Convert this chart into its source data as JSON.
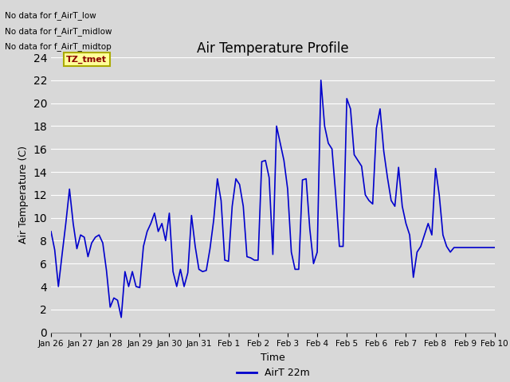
{
  "title": "Air Temperature Profile",
  "xlabel": "Time",
  "ylabel": "Air Temperature (C)",
  "legend_label": "AirT 22m",
  "line_color": "#0000CC",
  "background_color": "#D8D8D8",
  "plot_bg_color": "#D8D8D8",
  "ylim": [
    0,
    24
  ],
  "yticks": [
    0,
    2,
    4,
    6,
    8,
    10,
    12,
    14,
    16,
    18,
    20,
    22,
    24
  ],
  "xtick_labels": [
    "Jan 26",
    "Jan 27",
    "Jan 28",
    "Jan 29",
    "Jan 30",
    "Jan 31",
    "Feb 1",
    "Feb 2",
    "Feb 3",
    "Feb 4",
    "Feb 5",
    "Feb 6",
    "Feb 7",
    "Feb 8",
    "Feb 9",
    "Feb 10"
  ],
  "annotations": [
    "No data for f_AirT_low",
    "No data for f_AirT_midlow",
    "No data for f_AirT_midtop"
  ],
  "tz_label": "TZ_tmet",
  "time_values": [
    0,
    0.25,
    0.5,
    0.75,
    1.0,
    1.25,
    1.5,
    1.75,
    2.0,
    2.25,
    2.5,
    2.75,
    3.0,
    3.25,
    3.5,
    3.75,
    4.0,
    4.25,
    4.5,
    4.75,
    5.0,
    5.25,
    5.5,
    5.75,
    6.0,
    6.25,
    6.5,
    6.75,
    7.0,
    7.25,
    7.5,
    7.75,
    8.0,
    8.25,
    8.5,
    8.75,
    9.0,
    9.25,
    9.5,
    9.75,
    10.0,
    10.25,
    10.5,
    10.75,
    11.0,
    11.25,
    11.5,
    11.75,
    12.0,
    12.25,
    12.5,
    12.75,
    13.0,
    13.25,
    13.5,
    13.75,
    14.0,
    14.25,
    14.5,
    14.75,
    15.0,
    15.25,
    15.5,
    15.75,
    16.0,
    16.25,
    16.5,
    16.75,
    17.0,
    17.25,
    17.5,
    17.75,
    18.0,
    18.25,
    18.5,
    18.75,
    19.0,
    19.25,
    19.5,
    19.75,
    20.0,
    20.25,
    20.5,
    20.75,
    21.0,
    21.25,
    21.5,
    21.75,
    22.0,
    22.25,
    22.5,
    22.75,
    23.0,
    23.25,
    23.5,
    23.75,
    24.0,
    24.25,
    24.5,
    24.75,
    25.0,
    25.25,
    25.5,
    25.75,
    26.0,
    26.25,
    26.5,
    26.75,
    27.0,
    27.25,
    27.5,
    27.75,
    28.0,
    28.25,
    28.5,
    28.75,
    29.0,
    29.25,
    29.5,
    29.75,
    30.0
  ],
  "temp_values": [
    8.8,
    7.2,
    4.0,
    6.8,
    9.5,
    12.5,
    9.5,
    7.3,
    8.5,
    8.3,
    6.6,
    7.8,
    8.3,
    8.5,
    7.8,
    5.4,
    2.2,
    3.0,
    2.8,
    1.3,
    5.3,
    4.0,
    5.3,
    4.0,
    3.9,
    7.5,
    8.8,
    9.5,
    10.4,
    8.8,
    9.5,
    8.0,
    10.4,
    5.3,
    4.0,
    5.5,
    4.0,
    5.2,
    10.2,
    7.5,
    5.5,
    5.3,
    5.4,
    7.3,
    9.8,
    13.4,
    11.5,
    6.3,
    6.2,
    11.0,
    13.4,
    12.9,
    11.0,
    6.6,
    6.5,
    6.3,
    6.3,
    14.9,
    15.0,
    13.5,
    6.8,
    18.0,
    16.5,
    15.0,
    12.5,
    7.0,
    5.5,
    5.5,
    13.3,
    13.4,
    9.0,
    6.0,
    7.0,
    22.0,
    18.0,
    16.5,
    16.0,
    12.0,
    7.5,
    7.5,
    20.4,
    19.5,
    15.5,
    15.0,
    14.5,
    12.0,
    11.5,
    11.2,
    17.8,
    19.5,
    15.8,
    13.5,
    11.5,
    11.0,
    14.4,
    11.0,
    9.5,
    8.5,
    4.8,
    7.0,
    7.5,
    8.5,
    9.5,
    8.5,
    14.3,
    12.0,
    8.5,
    7.5,
    7.0,
    7.4,
    7.4,
    7.4,
    7.4,
    7.4,
    7.4,
    7.4,
    7.4,
    7.4,
    7.4,
    7.4,
    7.4
  ]
}
